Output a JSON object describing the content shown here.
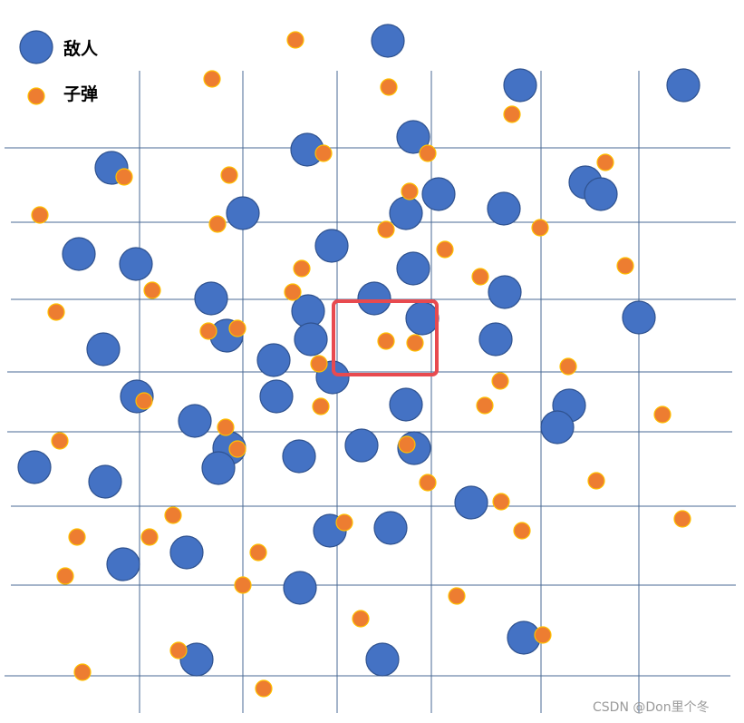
{
  "legend": {
    "enemy_label": "敌人",
    "bullet_label": "子弹"
  },
  "watermark": "CSDN @Don里个冬",
  "colors": {
    "enemy_fill": "#4472c4",
    "enemy_stroke": "#2f528f",
    "bullet_fill": "#ed7d31",
    "bullet_stroke": "#ffc000",
    "grid_line": "#4a6a94",
    "highlight_box": "#e84a4f"
  },
  "icons": {
    "enemy": "blue-circle",
    "bullet": "orange-circle"
  }
}
